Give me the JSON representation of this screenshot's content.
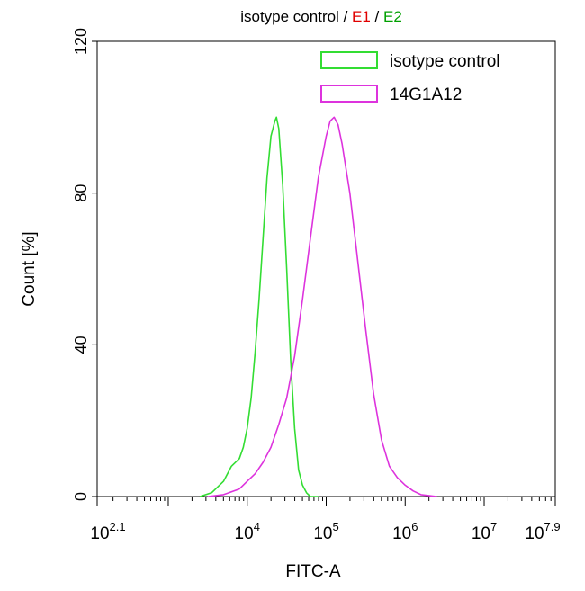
{
  "chart_data": {
    "type": "line",
    "title_parts": [
      {
        "text": "isotype control",
        "color": "#000000"
      },
      {
        "text": " / ",
        "color": "#000000"
      },
      {
        "text": "E1",
        "color": "#e00000"
      },
      {
        "text": " / ",
        "color": "#000000"
      },
      {
        "text": "E2",
        "color": "#00a000"
      }
    ],
    "xlabel": "FITC-A",
    "ylabel": "Count [%]",
    "x_scale": "log",
    "xlim": [
      2.1,
      7.9
    ],
    "ylim": [
      0,
      120
    ],
    "grid": false,
    "legend_position": "top-right",
    "x_ticks": [
      {
        "base": "10",
        "exp": "2.1",
        "value": 2.1
      },
      {
        "base": "10",
        "exp": "4",
        "value": 4
      },
      {
        "base": "10",
        "exp": "5",
        "value": 5
      },
      {
        "base": "10",
        "exp": "6",
        "value": 6
      },
      {
        "base": "10",
        "exp": "7",
        "value": 7
      },
      {
        "base": "10",
        "exp": "7.9",
        "value": 7.9
      }
    ],
    "y_ticks": [
      {
        "label": "0",
        "value": 0
      },
      {
        "label": "40",
        "value": 40
      },
      {
        "label": "80",
        "value": 80
      },
      {
        "label": "120",
        "value": 120
      }
    ],
    "series": [
      {
        "name": "isotype control",
        "color": "#33dd33",
        "x": [
          3.4,
          3.55,
          3.7,
          3.8,
          3.9,
          3.95,
          4.0,
          4.05,
          4.1,
          4.15,
          4.2,
          4.25,
          4.3,
          4.35,
          4.37,
          4.4,
          4.45,
          4.5,
          4.55,
          4.6,
          4.65,
          4.7,
          4.75,
          4.8,
          4.9
        ],
        "y": [
          0,
          1,
          4,
          8,
          10,
          13,
          18,
          26,
          38,
          52,
          68,
          84,
          95,
          99,
          100,
          97,
          82,
          60,
          36,
          18,
          7,
          3,
          1,
          0,
          0
        ]
      },
      {
        "name": "14G1A12",
        "color": "#dd33dd",
        "x": [
          3.5,
          3.7,
          3.9,
          4.0,
          4.1,
          4.2,
          4.3,
          4.4,
          4.5,
          4.6,
          4.7,
          4.8,
          4.9,
          5.0,
          5.05,
          5.1,
          5.15,
          5.2,
          5.3,
          5.4,
          5.5,
          5.6,
          5.7,
          5.8,
          5.9,
          6.0,
          6.1,
          6.2,
          6.4
        ],
        "y": [
          0,
          0.5,
          2,
          4,
          6,
          9,
          13,
          19,
          26,
          37,
          52,
          68,
          84,
          95,
          99,
          100,
          98,
          93,
          80,
          62,
          44,
          27,
          15,
          8,
          5,
          3,
          1.5,
          0.5,
          0
        ]
      }
    ]
  }
}
